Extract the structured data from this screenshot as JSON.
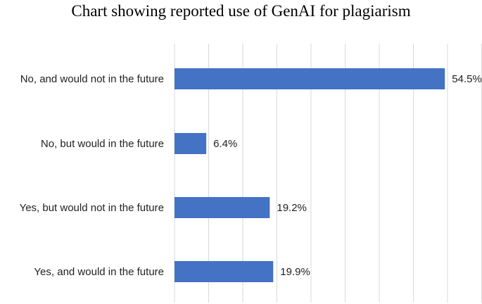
{
  "chart_data": {
    "type": "bar",
    "orientation": "horizontal",
    "title": "Chart showing reported use of GenAI for plagiarism",
    "categories": [
      "No, and would not in the future",
      "No, but would in the future",
      "Yes, but would not in the future",
      "Yes, and would in the future"
    ],
    "values": [
      54.5,
      6.4,
      19.2,
      19.9
    ],
    "value_labels": [
      "54.5%",
      "6.4%",
      "19.2%",
      "19.9%"
    ],
    "xlim": [
      0,
      60
    ],
    "gridlines": "vertical",
    "legend": "none",
    "bar_color": "#4472C4",
    "grid_color": "#D9D9D9"
  }
}
